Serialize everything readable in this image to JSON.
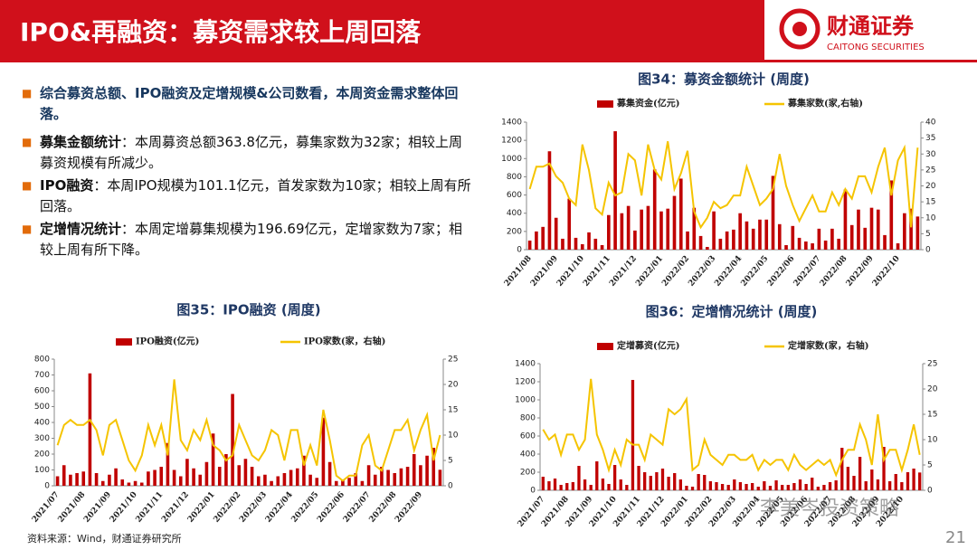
{
  "header": {
    "title": "IPO&再融资：募资需求较上周回落",
    "logo_cn": "财通证券",
    "logo_en": "CAITONG SECURITIES"
  },
  "bullets": [
    {
      "head": "综合募资总额、IPO融资及定增规模&公司数看，本周资金需求整体回落。"
    },
    {
      "head": "募集金额统计",
      "text": "：本周募资总额363.8亿元，募集家数为32家；相较上周募资规模有所减少。"
    },
    {
      "head": "IPO融资",
      "text": "：本周IPO规模为101.1亿元，首发家数为10家；相较上周有所回落。"
    },
    {
      "head": "定增情况统计",
      "text": "：本周定增募集规模为196.69亿元，定增家数为7家；相较上周有所下降。"
    }
  ],
  "footer": {
    "source": "资料来源：Wind，财通证券研究所",
    "page": "21",
    "watermark": "李美岑投资策略"
  },
  "chart_data": [
    {
      "type": "combo",
      "title": "图34：募资金额统计 (周度)",
      "categories": [
        "2021/08",
        null,
        null,
        null,
        "2021/09",
        null,
        null,
        null,
        "2021/10",
        null,
        null,
        null,
        "2021/11",
        null,
        null,
        null,
        "2021/12",
        null,
        null,
        null,
        "2022/01",
        null,
        null,
        null,
        "2022/02",
        null,
        null,
        null,
        "2022/03",
        null,
        null,
        null,
        "2022/04",
        null,
        null,
        null,
        "2022/05",
        null,
        null,
        null,
        "2022/06",
        null,
        null,
        null,
        "2022/07",
        null,
        null,
        null,
        "2022/08",
        null,
        null,
        null,
        "2022/09",
        null,
        null,
        null,
        "2022/10",
        null,
        null,
        null
      ],
      "ylim": [
        0,
        1400
      ],
      "yticks": [
        0,
        200,
        400,
        600,
        800,
        1000,
        1200,
        1400
      ],
      "y2lim": [
        0,
        40
      ],
      "y2ticks": [
        0,
        5,
        10,
        15,
        20,
        25,
        30,
        35,
        40
      ],
      "series": [
        {
          "name": "募集资金(亿元)",
          "type": "bar",
          "color": "#c00000",
          "values": [
            100,
            200,
            250,
            1080,
            350,
            120,
            560,
            130,
            60,
            190,
            120,
            50,
            380,
            1300,
            400,
            480,
            210,
            440,
            480,
            880,
            420,
            450,
            590,
            780,
            200,
            460,
            150,
            30,
            420,
            120,
            200,
            220,
            400,
            310,
            230,
            330,
            330,
            810,
            280,
            50,
            260,
            130,
            90,
            70,
            230,
            100,
            230,
            120,
            660,
            270,
            440,
            240,
            460,
            440,
            160,
            760,
            70,
            400,
            450,
            363.8
          ]
        },
        {
          "name": "募集家数(家,右轴)",
          "type": "line",
          "axis": "y2",
          "color": "#f5c400",
          "values": [
            19,
            26,
            26,
            27,
            23,
            21,
            16,
            14,
            33,
            25,
            13,
            11,
            21,
            17,
            18,
            30,
            28,
            17,
            33,
            25,
            22,
            34,
            19,
            24,
            31,
            12,
            7,
            10,
            15,
            13,
            14,
            17,
            17,
            26,
            20,
            14,
            16,
            19,
            30,
            20,
            14,
            9,
            13,
            17,
            12,
            12,
            18,
            14,
            19,
            16,
            23,
            23,
            18,
            26,
            32,
            17,
            28,
            32,
            7,
            32
          ]
        }
      ]
    },
    {
      "type": "combo",
      "title": "图35：IPO融资 (周度)",
      "categories": [
        "2021/07",
        null,
        null,
        null,
        "2021/08",
        null,
        null,
        null,
        "2021/09",
        null,
        null,
        null,
        "2021/10",
        null,
        null,
        null,
        "2021/11",
        null,
        null,
        null,
        "2021/12",
        null,
        null,
        null,
        "2022/01",
        null,
        null,
        null,
        "2022/02",
        null,
        null,
        null,
        "2022/03",
        null,
        null,
        null,
        "2022/04",
        null,
        null,
        null,
        "2022/05",
        null,
        null,
        null,
        "2022/06",
        null,
        null,
        null,
        "2022/07",
        null,
        null,
        null,
        "2022/08",
        null,
        null,
        null,
        "2022/09",
        null,
        null,
        null
      ],
      "ylim": [
        0,
        800
      ],
      "yticks": [
        0,
        100,
        200,
        300,
        400,
        500,
        600,
        700,
        800
      ],
      "y2lim": [
        0,
        25
      ],
      "y2ticks": [
        0,
        5,
        10,
        15,
        20,
        25
      ],
      "series": [
        {
          "name": "IPO融资(亿元)",
          "type": "bar",
          "color": "#c00000",
          "values": [
            60,
            130,
            70,
            80,
            90,
            710,
            80,
            30,
            70,
            110,
            40,
            20,
            30,
            20,
            90,
            100,
            120,
            270,
            100,
            60,
            170,
            110,
            70,
            150,
            330,
            120,
            200,
            580,
            130,
            170,
            120,
            60,
            70,
            30,
            60,
            80,
            100,
            110,
            190,
            70,
            50,
            430,
            150,
            30,
            40,
            50,
            80,
            30,
            130,
            70,
            120,
            100,
            80,
            110,
            120,
            200,
            130,
            190,
            240,
            101.1
          ]
        },
        {
          "name": "IPO家数(家，右轴)",
          "type": "line",
          "axis": "y2",
          "color": "#f5c400",
          "values": [
            8,
            12,
            13,
            12,
            12,
            13,
            11,
            6,
            12,
            13,
            9,
            5,
            3,
            6,
            12,
            8,
            12,
            6,
            21,
            9,
            7,
            11,
            9,
            13,
            8,
            7,
            5,
            6,
            12,
            9,
            6,
            5,
            7,
            11,
            10,
            5,
            11,
            11,
            4,
            8,
            4,
            15,
            9,
            2,
            1,
            2,
            2,
            8,
            10,
            4,
            3,
            7,
            11,
            11,
            13,
            7,
            11,
            14,
            5,
            10
          ]
        }
      ]
    },
    {
      "type": "combo",
      "title": "图36：定增情况统计 (周度)",
      "categories": [
        "2021/07",
        null,
        null,
        null,
        "2021/08",
        null,
        null,
        null,
        "2021/09",
        null,
        null,
        null,
        "2021/10",
        null,
        null,
        null,
        "2021/11",
        null,
        null,
        null,
        "2021/12",
        null,
        null,
        null,
        "2022/01",
        null,
        null,
        null,
        "2022/02",
        null,
        null,
        null,
        "2022/03",
        null,
        null,
        null,
        "2022/04",
        null,
        null,
        null,
        "2022/05",
        null,
        null,
        null,
        "2022/06",
        null,
        null,
        null,
        "2022/07",
        null,
        null,
        null,
        "2022/08",
        null,
        null,
        null,
        "2022/09",
        null,
        null,
        null,
        "2022/10",
        null,
        null,
        null
      ],
      "ylim": [
        0,
        1400
      ],
      "yticks": [
        0,
        200,
        400,
        600,
        800,
        1000,
        1200,
        1400
      ],
      "y2lim": [
        0,
        25
      ],
      "y2ticks": [
        0,
        5,
        10,
        15,
        20,
        25
      ],
      "series": [
        {
          "name": "定增募资(亿元)",
          "type": "bar",
          "color": "#c00000",
          "values": [
            150,
            100,
            130,
            60,
            80,
            90,
            270,
            120,
            60,
            320,
            130,
            70,
            280,
            120,
            60,
            1220,
            270,
            200,
            160,
            200,
            240,
            150,
            190,
            120,
            50,
            40,
            180,
            170,
            100,
            90,
            70,
            60,
            120,
            90,
            70,
            80,
            40,
            100,
            50,
            110,
            60,
            60,
            80,
            120,
            70,
            140,
            40,
            60,
            90,
            110,
            470,
            260,
            160,
            370,
            100,
            230,
            120,
            480,
            100,
            180,
            90,
            200,
            240,
            196.69
          ]
        },
        {
          "name": "定增家数(家，右轴)",
          "type": "line",
          "axis": "y2",
          "color": "#f5c400",
          "values": [
            12,
            10,
            11,
            7,
            11,
            11,
            8,
            10,
            22,
            11,
            8,
            4,
            8,
            5,
            10,
            9,
            9,
            6,
            11,
            10,
            9,
            16,
            15,
            16,
            18,
            4,
            5,
            10,
            7,
            6,
            5,
            7,
            7,
            6,
            6,
            7,
            4,
            6,
            5,
            6,
            6,
            4,
            7,
            5,
            4,
            5,
            6,
            5,
            6,
            3,
            6,
            8,
            8,
            13,
            10,
            5,
            15,
            6,
            8,
            8,
            4,
            8,
            13,
            7
          ]
        }
      ]
    }
  ]
}
